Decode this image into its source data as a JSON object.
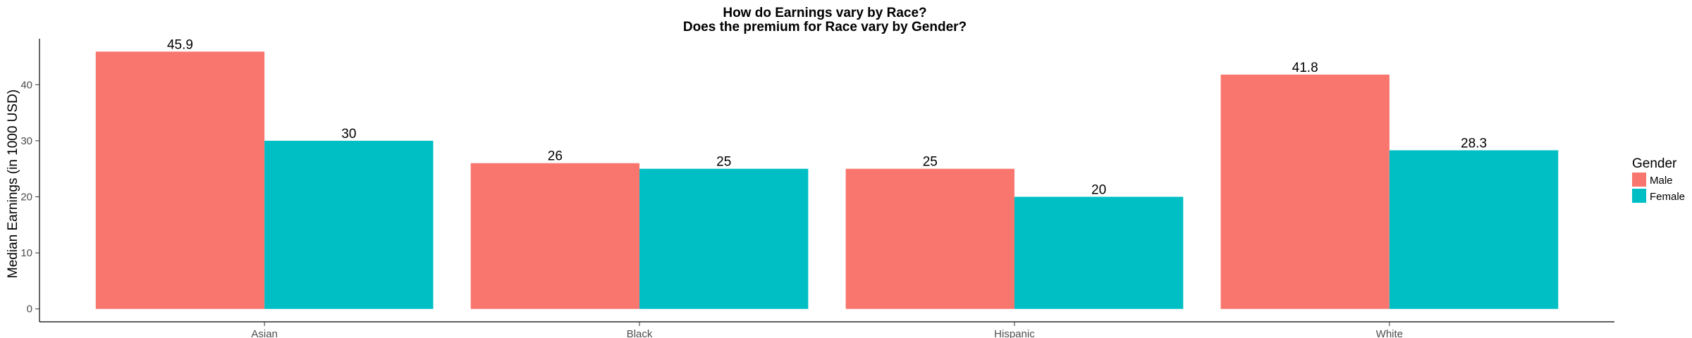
{
  "chart_data": {
    "type": "bar",
    "title": "How do Earnings vary by Race?",
    "subtitle": "Does the premium for Race vary by Gender?",
    "xlabel": "",
    "ylabel": "Median Earnings (in 1000 USD)",
    "categories": [
      "Asian",
      "Black",
      "Hispanic",
      "White"
    ],
    "series": [
      {
        "name": "Male",
        "color": "#F8766D",
        "values": [
          45.9,
          26,
          25,
          41.8
        ],
        "labels": [
          "45.9",
          "26",
          "25",
          "41.8"
        ]
      },
      {
        "name": "Female",
        "color": "#00BFC4",
        "values": [
          30,
          25,
          20,
          28.3
        ],
        "labels": [
          "30",
          "25",
          "20",
          "28.3"
        ]
      }
    ],
    "ylim": [
      -2.3,
      48.2
    ],
    "yticks": [
      0,
      10,
      20,
      30,
      40
    ],
    "ytick_labels": [
      "0",
      "10",
      "20",
      "30",
      "40"
    ],
    "grid": false,
    "legend": {
      "title": "Gender",
      "position": "right"
    }
  }
}
